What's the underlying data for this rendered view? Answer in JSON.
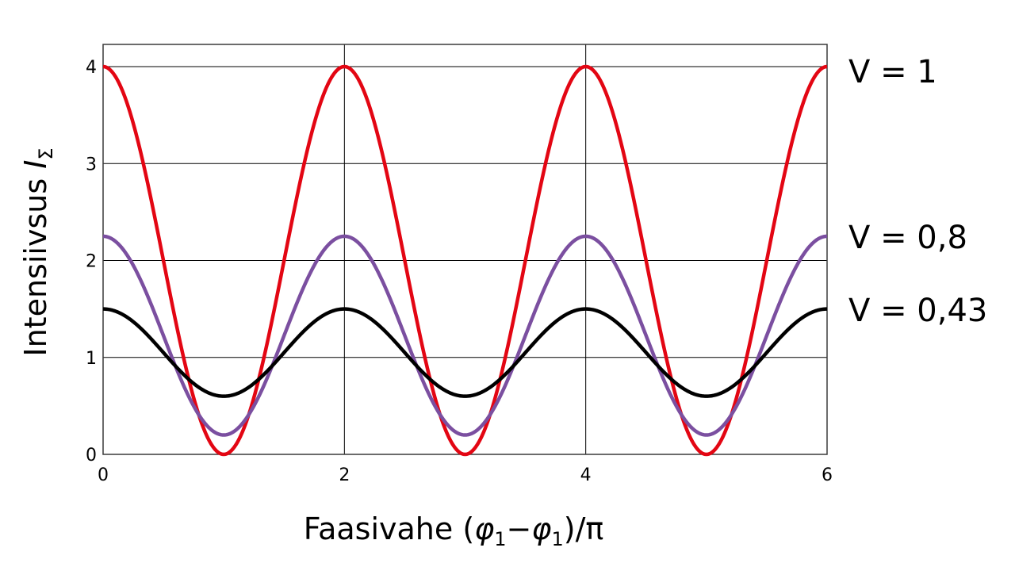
{
  "chart_data": {
    "type": "line",
    "title": "",
    "xlabel": "Faasivahe (φ1−φ1)/π",
    "xlabel_parts": {
      "main": "Faasivahe (",
      "phi": "φ",
      "sub1": "1",
      "minus": "−",
      "phi2": "φ",
      "sub2": "1",
      "tail": ")/π"
    },
    "ylabel": "Intensiivsus I_Σ",
    "ylabel_parts": {
      "main": "Intensiivsus ",
      "var": "I",
      "sub": "Σ"
    },
    "xlim": [
      0,
      6
    ],
    "ylim": [
      0,
      4
    ],
    "x_ticks": [
      "0",
      "2",
      "4",
      "6"
    ],
    "y_ticks": [
      "0",
      "1",
      "2",
      "3",
      "4"
    ],
    "grid": true,
    "legend_position": "right, inline labels",
    "series": [
      {
        "name": "V = 1",
        "color": "#e30613",
        "formula": "2 + 2cos(πx)",
        "max": 4,
        "min": 0,
        "x": [
          0,
          0.5,
          1,
          1.5,
          2,
          2.5,
          3,
          3.5,
          4,
          4.5,
          5,
          5.5,
          6
        ],
        "values": [
          4,
          2,
          0,
          2,
          4,
          2,
          0,
          2,
          4,
          2,
          0,
          2,
          4
        ]
      },
      {
        "name": "V = 0,8",
        "color": "#7b4fa0",
        "formula": "1.225 + 1.025cos(πx)",
        "max": 2.25,
        "min": 0.2,
        "x": [
          0,
          0.5,
          1,
          1.5,
          2,
          2.5,
          3,
          3.5,
          4,
          4.5,
          5,
          5.5,
          6
        ],
        "values": [
          2.25,
          1.225,
          0.2,
          1.225,
          2.25,
          1.225,
          0.2,
          1.225,
          2.25,
          1.225,
          0.2,
          1.225,
          2.25
        ]
      },
      {
        "name": "V = 0,43",
        "color": "#000000",
        "formula": "1.05 + 0.45cos(πx)",
        "max": 1.5,
        "min": 0.6,
        "x": [
          0,
          0.5,
          1,
          1.5,
          2,
          2.5,
          3,
          3.5,
          4,
          4.5,
          5,
          5.5,
          6
        ],
        "values": [
          1.5,
          1.05,
          0.6,
          1.05,
          1.5,
          1.05,
          0.6,
          1.05,
          1.5,
          1.05,
          0.6,
          1.05,
          1.5
        ]
      }
    ]
  },
  "legend": {
    "v1": "V = 1",
    "v08": "V = 0,8",
    "v043": "V = 0,43"
  }
}
